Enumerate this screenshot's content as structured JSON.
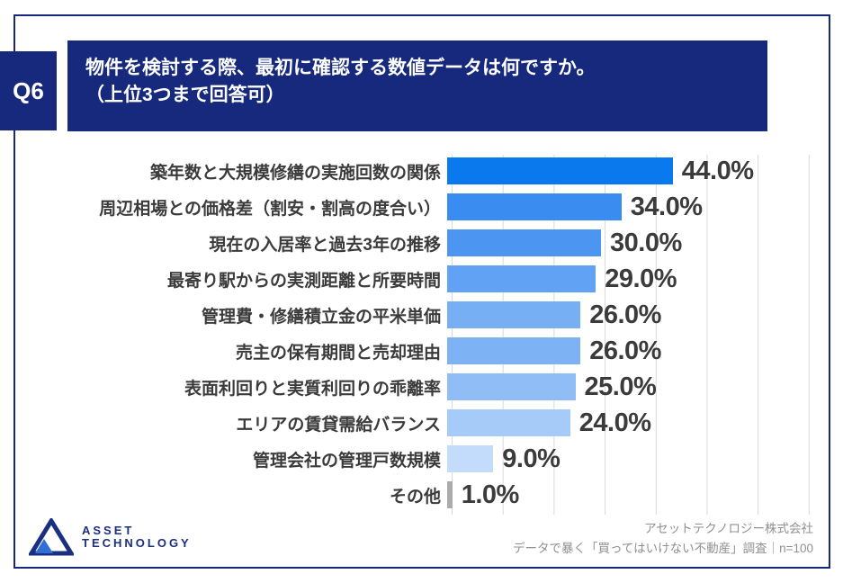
{
  "q_label": "Q6",
  "header": {
    "line1": "物件を検討する際、最初に確認する数値データは何ですか。",
    "line2": "（上位3つまで回答可）"
  },
  "chart_data": {
    "type": "bar",
    "orientation": "horizontal",
    "title": "物件を検討する際、最初に確認する数値データは何ですか。（上位3つまで回答可）",
    "categories": [
      "築年数と大規模修繕の実施回数の関係",
      "周辺相場との価格差（割安・割高の度合い）",
      "現在の入居率と過去3年の推移",
      "最寄り駅からの実測距離と所要時間",
      "管理費・修繕積立金の平米単価",
      "売主の保有期間と売却理由",
      "表面利回りと実質利回りの乖離率",
      "エリアの賃貸需給バランス",
      "管理会社の管理戸数規模",
      "その他"
    ],
    "values": [
      44.0,
      34.0,
      30.0,
      29.0,
      26.0,
      26.0,
      25.0,
      24.0,
      9.0,
      1.0
    ],
    "value_labels": [
      "44.0%",
      "34.0%",
      "30.0%",
      "29.0%",
      "26.0%",
      "26.0%",
      "25.0%",
      "24.0%",
      "9.0%",
      "1.0%"
    ],
    "bar_colors": [
      "#0b79ee",
      "#3b8cf1",
      "#4c96f2",
      "#61a2f4",
      "#77aff5",
      "#7db3f5",
      "#90bdf6",
      "#a7cbf8",
      "#c3dcfb",
      "#ababab"
    ],
    "xlim": [
      0,
      70
    ],
    "gridline_interval": 10,
    "grid": true,
    "legend": false
  },
  "footer": {
    "logo_line1": "ASSET",
    "logo_line2": "TECHNOLOGY",
    "attribution_line1": "アセットテクノロジー株式会社",
    "attribution_line2": "データで暴く「買ってはいけない不動産」調査｜n=100"
  },
  "colors": {
    "navy": "#16297c",
    "logo_navy": "#1b2f81",
    "logo_inner_blue": "#2f6fd6",
    "grid": "#d9d9d9",
    "label_text": "#3b3b3b",
    "attribution_gray": "#909090"
  }
}
